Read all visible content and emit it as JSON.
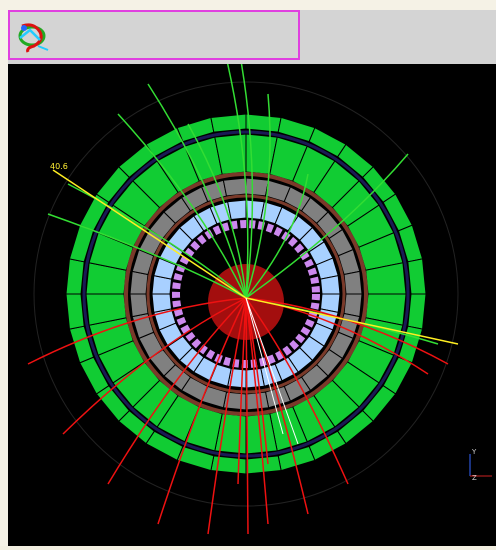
{
  "toolbar": {
    "logo_icon": "atlantis-logo-icon"
  },
  "event_display": {
    "energy_label": "40.6",
    "axis": {
      "y_label": "Y",
      "z_label": "Z"
    },
    "colors": {
      "calorimeter_outer": "#11cc33",
      "calorimeter_inner": "#808080",
      "tracker_ring": "#a8d0ff",
      "pixel_ring": "#cc88ee",
      "track_green": "#33dd33",
      "track_red": "#ee1111",
      "track_yellow": "#ffee22",
      "core": "#cc1111"
    }
  }
}
